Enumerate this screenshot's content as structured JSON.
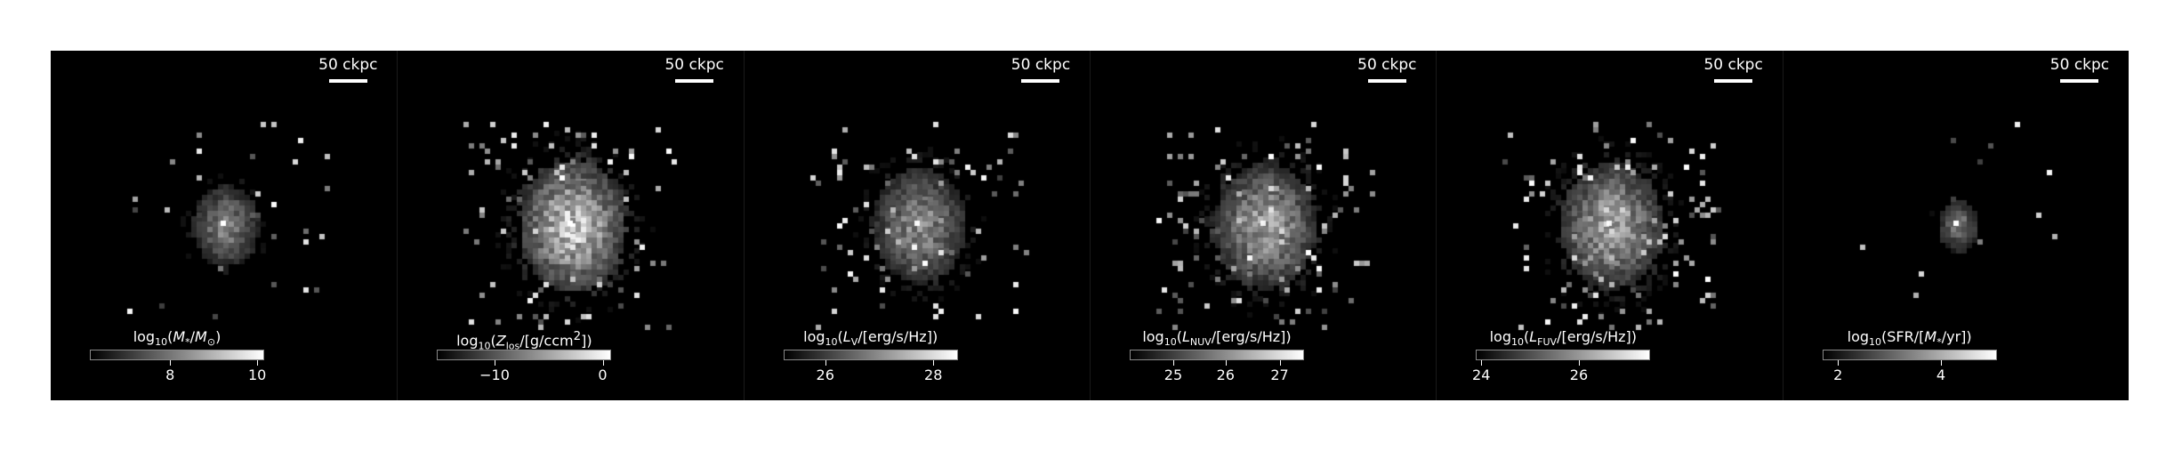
{
  "scalebar_label": "50 ckpc",
  "panels": [
    {
      "quantity": "stellar-mass",
      "colorbar": {
        "title_html": "log<sub>10</sub>(<i>M</i><sub>*</sub>/<i>M</i><sub>⊙</sub>)",
        "ticks": [
          {
            "label": "8",
            "frac": 0.46
          },
          {
            "label": "10",
            "frac": 0.96
          }
        ]
      },
      "blob": {
        "spread": 0.55,
        "brightness": 0.55,
        "peak": 1.0,
        "scatter": 30
      }
    },
    {
      "quantity": "metallicity",
      "colorbar": {
        "title_html": "log<sub>10</sub>(<i>Z</i><sub>los</sub>/[g/ccm<sup>2</sup>])",
        "ticks": [
          {
            "label": "−10",
            "frac": 0.33
          },
          {
            "label": "0",
            "frac": 0.95
          }
        ]
      },
      "blob": {
        "spread": 1.0,
        "brightness": 0.85,
        "peak": 1.0,
        "scatter": 90
      }
    },
    {
      "quantity": "v-band-luminosity",
      "colorbar": {
        "title_html": "log<sub>10</sub>(<i>L</i><sub>V</sub>/[erg/s/Hz])",
        "ticks": [
          {
            "label": "26",
            "frac": 0.24
          },
          {
            "label": "28",
            "frac": 0.86
          }
        ]
      },
      "blob": {
        "spread": 0.85,
        "brightness": 0.6,
        "peak": 0.95,
        "scatter": 80
      }
    },
    {
      "quantity": "nuv-luminosity",
      "colorbar": {
        "title_html": "log<sub>10</sub>(<i>L</i><sub>NUV</sub>/[erg/s/Hz])",
        "ticks": [
          {
            "label": "25",
            "frac": 0.25
          },
          {
            "label": "26",
            "frac": 0.55
          },
          {
            "label": "27",
            "frac": 0.86
          }
        ]
      },
      "blob": {
        "spread": 0.95,
        "brightness": 0.7,
        "peak": 0.9,
        "scatter": 110
      }
    },
    {
      "quantity": "fuv-luminosity",
      "colorbar": {
        "title_html": "log<sub>10</sub>(<i>L</i><sub>FUV</sub>/[erg/s/Hz])",
        "ticks": [
          {
            "label": "24",
            "frac": 0.03
          },
          {
            "label": "26",
            "frac": 0.59
          }
        ]
      },
      "blob": {
        "spread": 0.95,
        "brightness": 0.72,
        "peak": 0.9,
        "scatter": 110
      }
    },
    {
      "quantity": "star-formation-rate",
      "colorbar": {
        "title_html": "log<sub>10</sub>(SFR/[<i>M</i><sub>*</sub>/yr])",
        "ticks": [
          {
            "label": "2",
            "frac": 0.09
          },
          {
            "label": "4",
            "frac": 0.68
          }
        ]
      },
      "blob": {
        "spread": 0.28,
        "brightness": 0.5,
        "peak": 1.0,
        "scatter": 12
      }
    }
  ]
}
